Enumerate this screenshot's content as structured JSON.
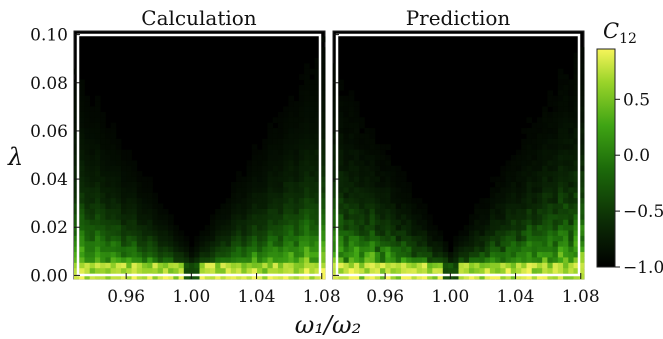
{
  "chart_data": {
    "type": "heatmap",
    "xlabel": "ω₁/ω₂",
    "ylabel": "λ",
    "xlim": [
      0.928,
      1.082
    ],
    "ylim": [
      -0.0015,
      0.1015
    ],
    "x_ticks": [
      "0.96",
      "1.00",
      "1.04",
      "1.08"
    ],
    "x_tick_values": [
      0.96,
      1.0,
      1.04,
      1.08
    ],
    "y_ticks": [
      "0.00",
      "0.02",
      "0.04",
      "0.06",
      "0.08",
      "0.10"
    ],
    "y_tick_values": [
      0.0,
      0.02,
      0.04,
      0.06,
      0.08,
      0.1
    ],
    "panels": [
      {
        "title": "Calculation",
        "description_value": "C12 rises toward 1.0 near λ=0, decays to -1.0 for larger λ; dark wedge near ω1/ω2=1.00"
      },
      {
        "title": "Prediction",
        "description_value": "same structure with noisier speckle near λ<0.02"
      }
    ],
    "colorbar": {
      "label": "C",
      "label_sub": "12",
      "range": [
        -1.0,
        0.95
      ],
      "ticks": [
        "0.5",
        "0.0",
        "−0.5",
        "−1.0"
      ],
      "tick_values": [
        0.5,
        0.0,
        -0.5,
        -1.0
      ],
      "colormap": [
        "#000000",
        "#0b2a05",
        "#1c6a0a",
        "#3fa414",
        "#9bd42a",
        "#f6f55a"
      ]
    }
  }
}
